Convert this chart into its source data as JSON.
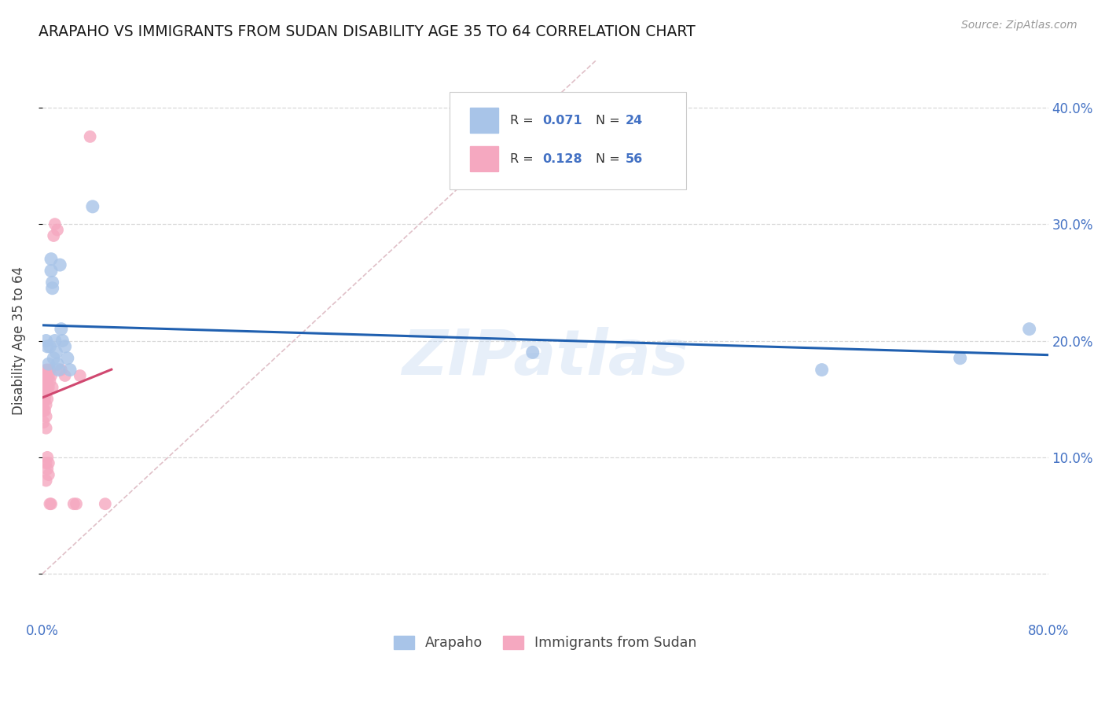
{
  "title": "ARAPAHO VS IMMIGRANTS FROM SUDAN DISABILITY AGE 35 TO 64 CORRELATION CHART",
  "source": "Source: ZipAtlas.com",
  "ylabel": "Disability Age 35 to 64",
  "xlabel_label_arapaho": "Arapaho",
  "xlabel_label_sudan": "Immigrants from Sudan",
  "watermark": "ZIPatlas",
  "xlim": [
    0,
    0.8
  ],
  "ylim": [
    -0.04,
    0.44
  ],
  "xticks": [
    0.0,
    0.1,
    0.2,
    0.3,
    0.4,
    0.5,
    0.6,
    0.7,
    0.8
  ],
  "xticklabels": [
    "0.0%",
    "",
    "",
    "",
    "",
    "",
    "",
    "",
    "80.0%"
  ],
  "yticks": [
    0.0,
    0.1,
    0.2,
    0.3,
    0.4
  ],
  "yticklabels_right": [
    "",
    "10.0%",
    "20.0%",
    "30.0%",
    "40.0%"
  ],
  "legend_r_arapaho": "R = 0.071",
  "legend_n_arapaho": "N = 24",
  "legend_r_sudan": "R = 0.128",
  "legend_n_sudan": "N = 56",
  "arapaho_color": "#a8c4e8",
  "sudan_color": "#f5a8c0",
  "arapaho_line_color": "#2060b0",
  "sudan_line_color": "#d04870",
  "diagonal_color": "#e0c0c8",
  "background_color": "#ffffff",
  "grid_color": "#d8d8d8",
  "arapaho_x": [
    0.003,
    0.004,
    0.005,
    0.006,
    0.007,
    0.007,
    0.008,
    0.008,
    0.009,
    0.01,
    0.011,
    0.012,
    0.013,
    0.014,
    0.015,
    0.016,
    0.018,
    0.02,
    0.022,
    0.04,
    0.39,
    0.62,
    0.73,
    0.785
  ],
  "arapaho_y": [
    0.2,
    0.195,
    0.18,
    0.195,
    0.26,
    0.27,
    0.25,
    0.245,
    0.185,
    0.2,
    0.19,
    0.18,
    0.175,
    0.265,
    0.21,
    0.2,
    0.195,
    0.185,
    0.175,
    0.315,
    0.19,
    0.175,
    0.185,
    0.21
  ],
  "sudan_x": [
    0.0005,
    0.0005,
    0.0005,
    0.001,
    0.001,
    0.001,
    0.001,
    0.001,
    0.001,
    0.001,
    0.0015,
    0.0015,
    0.002,
    0.002,
    0.002,
    0.002,
    0.002,
    0.0025,
    0.0025,
    0.003,
    0.003,
    0.003,
    0.003,
    0.003,
    0.003,
    0.003,
    0.003,
    0.003,
    0.003,
    0.004,
    0.004,
    0.004,
    0.004,
    0.004,
    0.004,
    0.005,
    0.005,
    0.005,
    0.005,
    0.005,
    0.006,
    0.006,
    0.006,
    0.007,
    0.007,
    0.008,
    0.009,
    0.01,
    0.012,
    0.015,
    0.018,
    0.025,
    0.027,
    0.03,
    0.038,
    0.05
  ],
  "sudan_y": [
    0.165,
    0.155,
    0.145,
    0.17,
    0.165,
    0.16,
    0.155,
    0.15,
    0.14,
    0.13,
    0.165,
    0.155,
    0.17,
    0.165,
    0.155,
    0.15,
    0.14,
    0.165,
    0.155,
    0.175,
    0.17,
    0.165,
    0.16,
    0.155,
    0.145,
    0.135,
    0.125,
    0.095,
    0.08,
    0.175,
    0.165,
    0.16,
    0.15,
    0.1,
    0.09,
    0.175,
    0.17,
    0.16,
    0.095,
    0.085,
    0.175,
    0.165,
    0.06,
    0.17,
    0.06,
    0.16,
    0.29,
    0.3,
    0.295,
    0.175,
    0.17,
    0.06,
    0.06,
    0.17,
    0.375,
    0.06
  ],
  "sudan_trend_x": [
    0.0,
    0.055
  ],
  "arapaho_trend_x": [
    0.0,
    0.8
  ]
}
